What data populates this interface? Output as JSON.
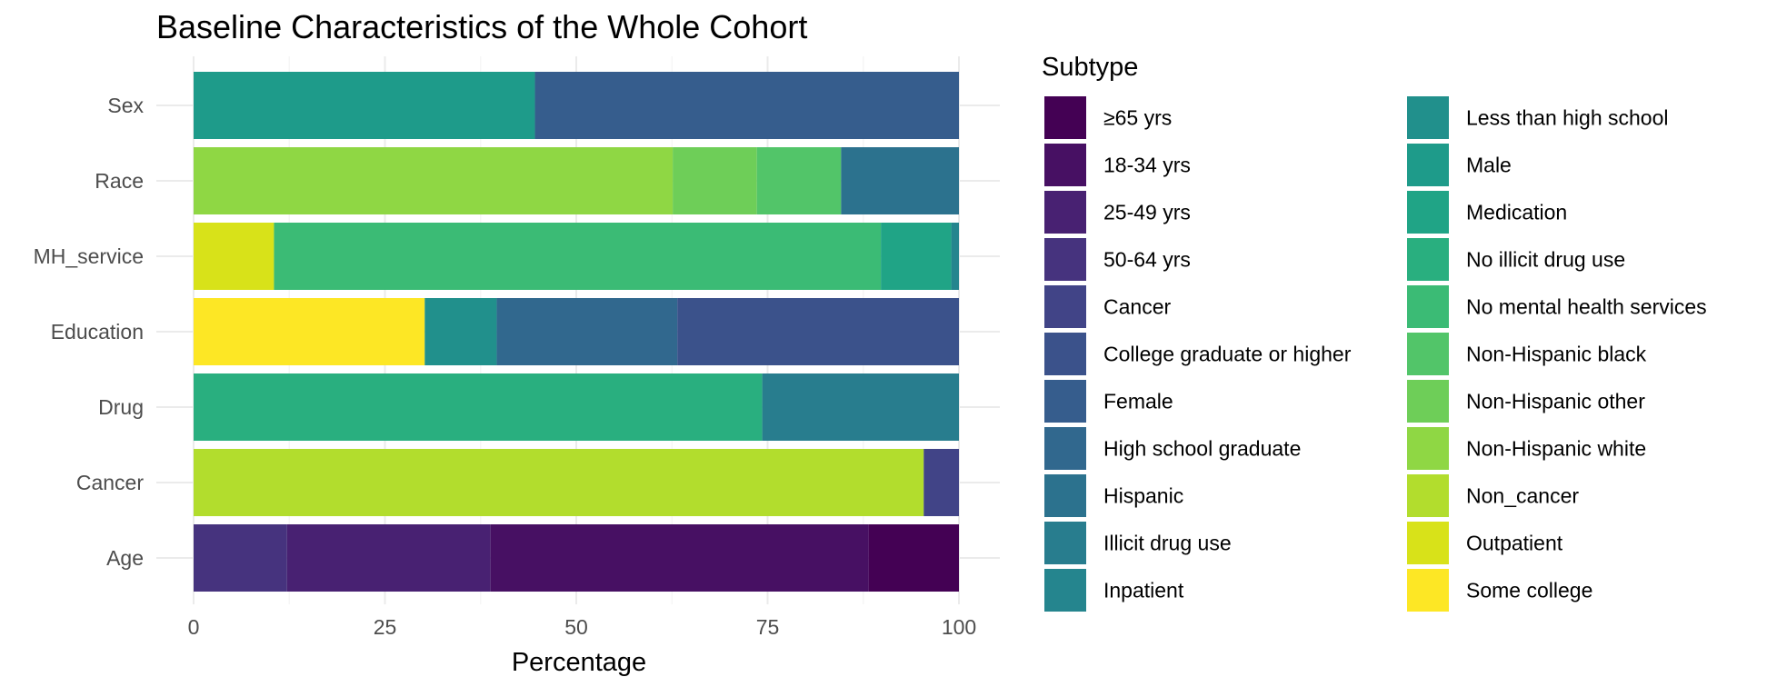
{
  "chart_data": {
    "type": "bar",
    "orientation": "horizontal",
    "stacked": true,
    "title": "Baseline Characteristics of the Whole Cohort",
    "xlabel": "Percentage",
    "ylabel": "",
    "xlim": [
      0,
      100
    ],
    "xticks": [
      "0",
      "25",
      "50",
      "75",
      "100"
    ],
    "grid": true,
    "legend_title": "Subtype",
    "legend_position": "right",
    "categories": [
      "Sex",
      "Race",
      "MH_service",
      "Education",
      "Drug",
      "Cancer",
      "Age"
    ],
    "subtypes": [
      {
        "name": "≥65 yrs",
        "color": "#440154"
      },
      {
        "name": "18-34 yrs",
        "color": "#471063"
      },
      {
        "name": "25-49 yrs",
        "color": "#482172"
      },
      {
        "name": "50-64 yrs",
        "color": "#46337e"
      },
      {
        "name": "Cancer",
        "color": "#414487"
      },
      {
        "name": "College graduate or higher",
        "color": "#3b528b"
      },
      {
        "name": "Female",
        "color": "#365d8d"
      },
      {
        "name": "High school graduate",
        "color": "#31688e"
      },
      {
        "name": "Hispanic",
        "color": "#2c728e"
      },
      {
        "name": "Illicit drug use",
        "color": "#287d8e"
      },
      {
        "name": "Inpatient",
        "color": "#25858e"
      },
      {
        "name": "Less than high school",
        "color": "#21908c"
      },
      {
        "name": "Male",
        "color": "#1e9b8a"
      },
      {
        "name": "Medication",
        "color": "#20a486"
      },
      {
        "name": "No illicit drug use",
        "color": "#29af7f"
      },
      {
        "name": "No mental health services",
        "color": "#3bbb75"
      },
      {
        "name": "Non-Hispanic black",
        "color": "#52c569"
      },
      {
        "name": "Non-Hispanic other",
        "color": "#6ece58"
      },
      {
        "name": "Non-Hispanic white",
        "color": "#8fd744"
      },
      {
        "name": "Non_cancer",
        "color": "#b2dd2d"
      },
      {
        "name": "Outpatient",
        "color": "#d8e219"
      },
      {
        "name": "Some college",
        "color": "#fde725"
      }
    ],
    "series": [
      {
        "category": "Sex",
        "segments": [
          {
            "subtype": "Male",
            "value": 44.6
          },
          {
            "subtype": "Female",
            "value": 55.4
          }
        ]
      },
      {
        "category": "Race",
        "segments": [
          {
            "subtype": "Non-Hispanic white",
            "value": 62.6
          },
          {
            "subtype": "Non-Hispanic other",
            "value": 11.0
          },
          {
            "subtype": "Non-Hispanic black",
            "value": 11.0
          },
          {
            "subtype": "Hispanic",
            "value": 15.4
          }
        ]
      },
      {
        "category": "MH_service",
        "segments": [
          {
            "subtype": "Outpatient",
            "value": 10.5
          },
          {
            "subtype": "No mental health services",
            "value": 79.3
          },
          {
            "subtype": "Medication",
            "value": 9.2
          },
          {
            "subtype": "Inpatient",
            "value": 1.0
          }
        ]
      },
      {
        "category": "Education",
        "segments": [
          {
            "subtype": "Some college",
            "value": 30.2
          },
          {
            "subtype": "Less than high school",
            "value": 9.4
          },
          {
            "subtype": "High school graduate",
            "value": 23.6
          },
          {
            "subtype": "College graduate or higher",
            "value": 36.8
          }
        ]
      },
      {
        "category": "Drug",
        "segments": [
          {
            "subtype": "No illicit drug use",
            "value": 74.3
          },
          {
            "subtype": "Illicit drug use",
            "value": 25.7
          }
        ]
      },
      {
        "category": "Cancer",
        "segments": [
          {
            "subtype": "Non_cancer",
            "value": 95.4
          },
          {
            "subtype": "Cancer",
            "value": 4.6
          }
        ]
      },
      {
        "category": "Age",
        "segments": [
          {
            "subtype": "50-64 yrs",
            "value": 12.2
          },
          {
            "subtype": "25-49 yrs",
            "value": 26.6
          },
          {
            "subtype": "18-34 yrs",
            "value": 49.4
          },
          {
            "subtype": "≥65 yrs",
            "value": 11.8
          }
        ]
      }
    ]
  }
}
